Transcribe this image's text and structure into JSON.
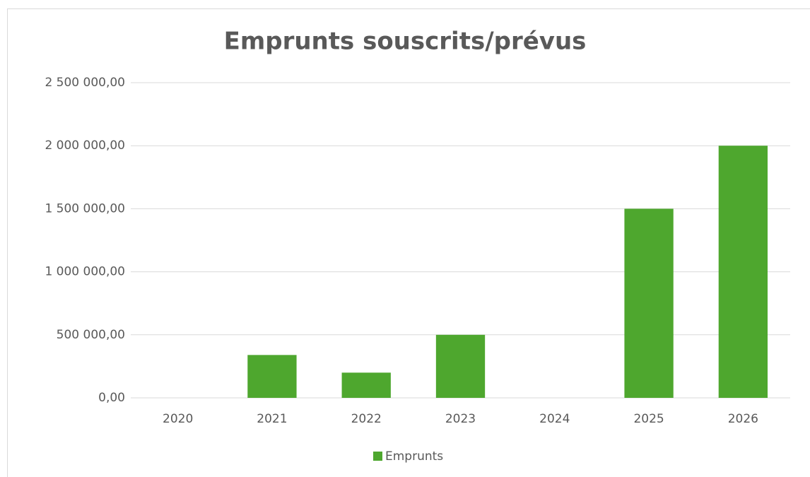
{
  "chart_data": {
    "type": "bar",
    "title": "Emprunts souscrits/prévus",
    "categories": [
      "2020",
      "2021",
      "2022",
      "2023",
      "2024",
      "2025",
      "2026"
    ],
    "series": [
      {
        "name": "Emprunts",
        "color": "#4ea72e",
        "values": [
          0,
          340000,
          200000,
          500000,
          0,
          1500000,
          2000000
        ]
      }
    ],
    "ylim": [
      0,
      2500000
    ],
    "yticks": [
      {
        "value": 0,
        "label": "0,00"
      },
      {
        "value": 500000,
        "label": "500 000,00"
      },
      {
        "value": 1000000,
        "label": "1 000 000,00"
      },
      {
        "value": 1500000,
        "label": "1 500 000,00"
      },
      {
        "value": 2000000,
        "label": "2 000 000,00"
      },
      {
        "value": 2500000,
        "label": "2 500 000,00"
      }
    ],
    "grid": true,
    "legend": "bottom"
  }
}
